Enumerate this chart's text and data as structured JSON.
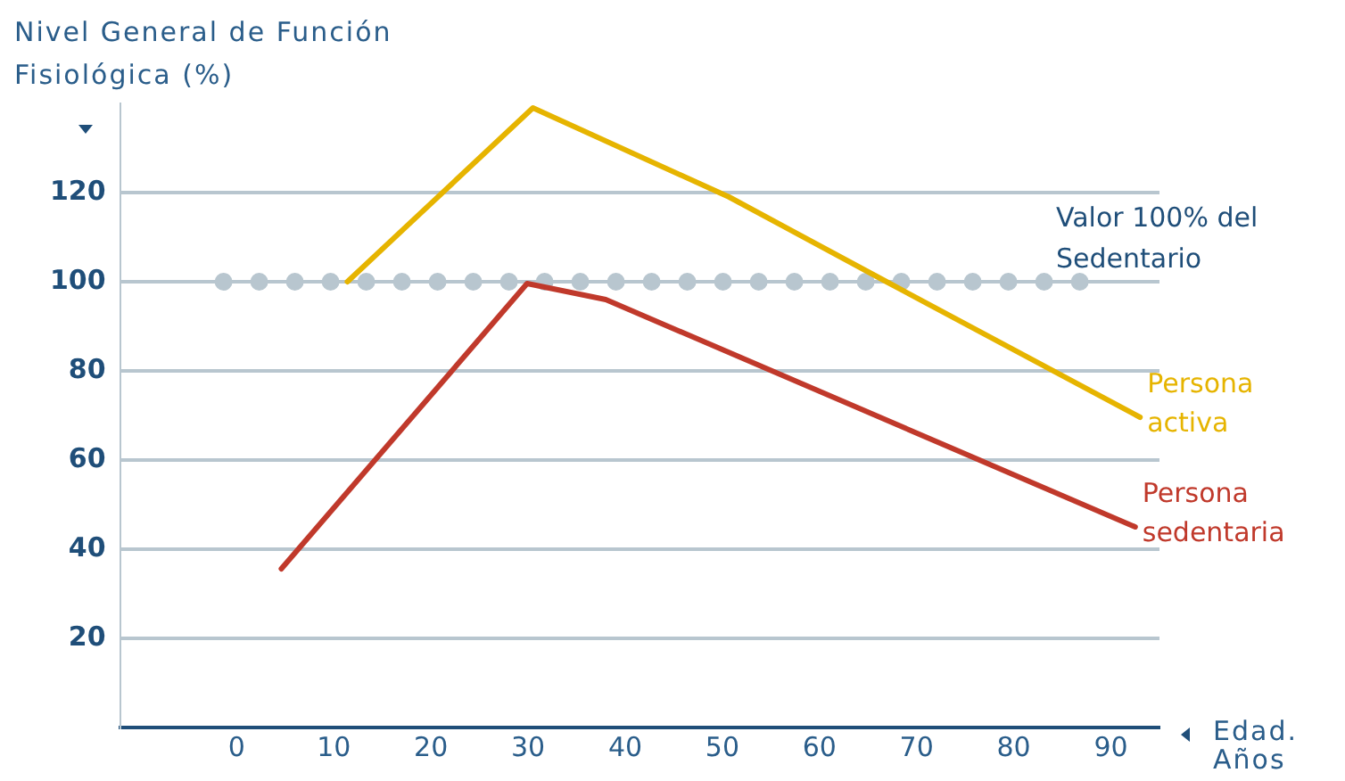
{
  "chart_data": {
    "type": "line",
    "ylabel": "Nivel General de Función Fisiológica (%)",
    "xlabel": "Edad. Años",
    "series": [
      {
        "name": "Persona activa",
        "color": "#e6b400",
        "x": [
          11.4,
          30.5,
          50.7,
          66.9,
          93
        ],
        "values": [
          100,
          139,
          119,
          100,
          69.6
        ]
      },
      {
        "name": "Persona sedentaria",
        "color": "#c0392b",
        "x": [
          4.6,
          29.9,
          38,
          92.5
        ],
        "values": [
          35.6,
          99.6,
          96,
          45
        ]
      }
    ],
    "xlim": [
      -12,
      95
    ],
    "xticks": [
      0,
      10,
      20,
      30,
      40,
      50,
      60,
      70,
      80,
      90
    ],
    "ylim": [
      0,
      140
    ],
    "yticks": [
      20,
      40,
      60,
      80,
      100,
      120
    ],
    "ref_lines": [
      {
        "axis": "y",
        "value": 100,
        "label": "Valor 100% del Sedentario",
        "color": "#b8c6cf",
        "line_style": "dotted"
      }
    ],
    "grid": "y",
    "legend": false,
    "marker": "none",
    "line_style": "solid"
  }
}
